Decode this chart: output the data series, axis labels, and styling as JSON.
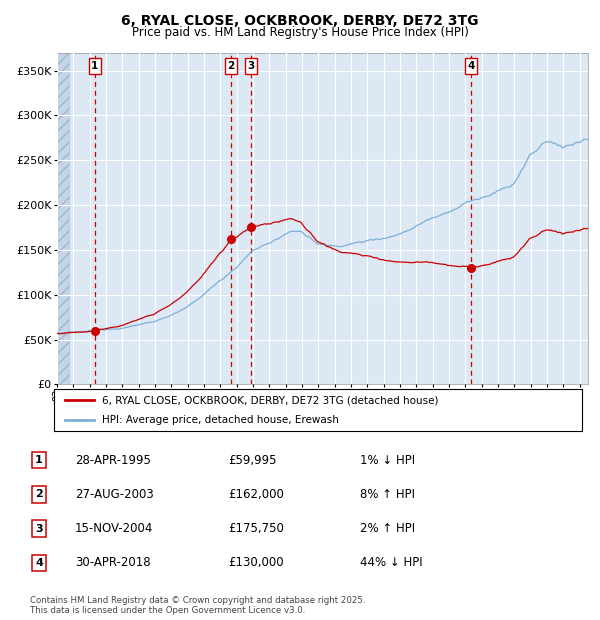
{
  "title": "6, RYAL CLOSE, OCKBROOK, DERBY, DE72 3TG",
  "subtitle": "Price paid vs. HM Land Registry's House Price Index (HPI)",
  "ylim": [
    0,
    370000
  ],
  "xlim_start": 1993.0,
  "xlim_end": 2025.5,
  "yticks": [
    0,
    50000,
    100000,
    150000,
    200000,
    250000,
    300000,
    350000
  ],
  "ytick_labels": [
    "£0",
    "£50K",
    "£100K",
    "£150K",
    "£200K",
    "£250K",
    "£300K",
    "£350K"
  ],
  "sale_dates": [
    1995.32,
    2003.65,
    2004.88,
    2018.33
  ],
  "sale_prices": [
    59995,
    162000,
    175750,
    130000
  ],
  "sale_labels": [
    "1",
    "2",
    "3",
    "4"
  ],
  "hpi_color": "#7ab0d8",
  "price_color": "#cc0000",
  "dot_color": "#cc0000",
  "vline_color": "#cc0000",
  "bg_color": "#dce9f5",
  "grid_color": "#ffffff",
  "legend_line1": "6, RYAL CLOSE, OCKBROOK, DERBY, DE72 3TG (detached house)",
  "legend_line2": "HPI: Average price, detached house, Erewash",
  "table_entries": [
    {
      "num": "1",
      "date": "28-APR-1995",
      "price": "£59,995",
      "change": "1% ↓ HPI"
    },
    {
      "num": "2",
      "date": "27-AUG-2003",
      "price": "£162,000",
      "change": "8% ↑ HPI"
    },
    {
      "num": "3",
      "date": "15-NOV-2004",
      "price": "£175,750",
      "change": "2% ↑ HPI"
    },
    {
      "num": "4",
      "date": "30-APR-2018",
      "price": "£130,000",
      "change": "44% ↓ HPI"
    }
  ],
  "footer": "Contains HM Land Registry data © Crown copyright and database right 2025.\nThis data is licensed under the Open Government Licence v3.0."
}
